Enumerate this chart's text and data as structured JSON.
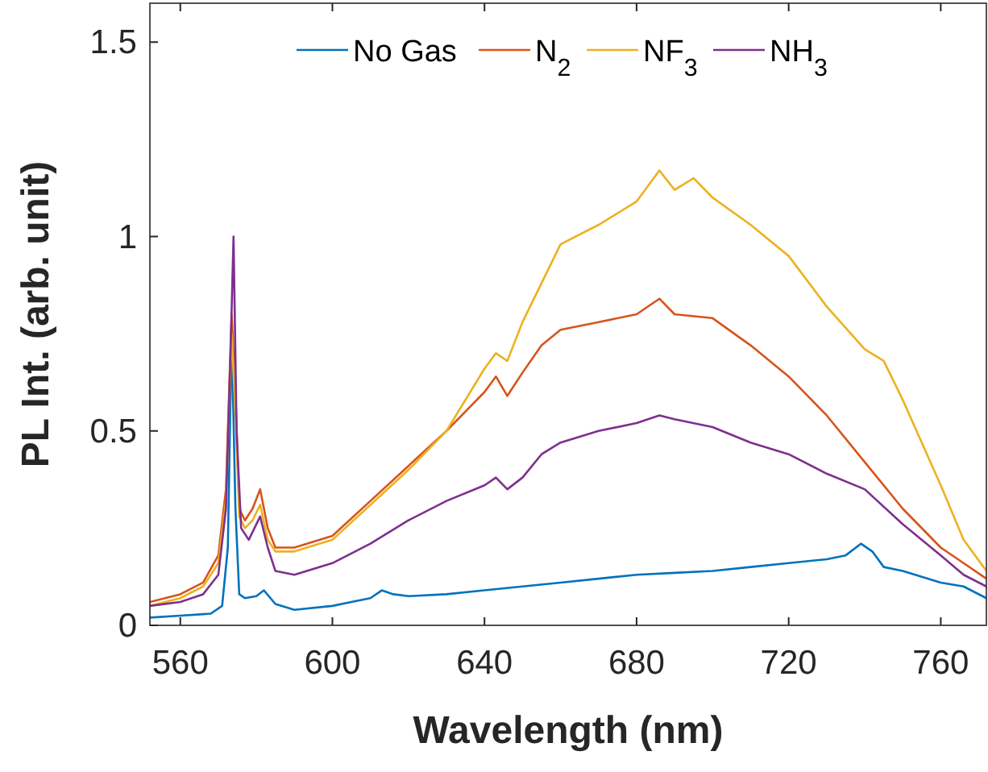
{
  "chart_data": {
    "type": "line",
    "xlabel": "Wavelength (nm)",
    "ylabel": "PL Int. (arb. unit)",
    "xlim": [
      552,
      772
    ],
    "ylim": [
      0,
      1.6
    ],
    "xticks": [
      560,
      600,
      640,
      680,
      720,
      760
    ],
    "yticks": [
      0,
      0.5,
      1,
      1.5
    ],
    "legend": "top",
    "grid": false,
    "line_style": "solid",
    "marker": "none",
    "series": [
      {
        "name": "No Gas",
        "color": "#0072bd",
        "x": [
          552,
          560,
          568,
          571,
          572.5,
          573.5,
          574.5,
          575.5,
          577,
          580,
          582,
          585,
          590,
          600,
          605,
          610,
          613,
          616,
          620,
          630,
          640,
          650,
          660,
          670,
          680,
          690,
          700,
          710,
          720,
          730,
          735,
          739,
          742,
          745,
          750,
          760,
          766,
          772
        ],
        "values": [
          0.02,
          0.025,
          0.03,
          0.05,
          0.2,
          0.75,
          0.3,
          0.08,
          0.07,
          0.075,
          0.09,
          0.055,
          0.04,
          0.05,
          0.06,
          0.07,
          0.09,
          0.08,
          0.075,
          0.08,
          0.09,
          0.1,
          0.11,
          0.12,
          0.13,
          0.135,
          0.14,
          0.15,
          0.16,
          0.17,
          0.18,
          0.21,
          0.19,
          0.15,
          0.14,
          0.11,
          0.1,
          0.07
        ]
      },
      {
        "name": "N$_{2}$",
        "color": "#d95319",
        "x": [
          552,
          560,
          566,
          570,
          572,
          573.5,
          574.5,
          575.5,
          577,
          579,
          581,
          583,
          585,
          590,
          600,
          610,
          620,
          630,
          640,
          643,
          646,
          650,
          655,
          660,
          670,
          680,
          686,
          690,
          700,
          710,
          720,
          730,
          740,
          750,
          760,
          766,
          772
        ],
        "values": [
          0.06,
          0.08,
          0.11,
          0.18,
          0.35,
          0.8,
          0.6,
          0.3,
          0.27,
          0.3,
          0.35,
          0.25,
          0.2,
          0.2,
          0.23,
          0.32,
          0.41,
          0.5,
          0.6,
          0.64,
          0.59,
          0.65,
          0.72,
          0.76,
          0.78,
          0.8,
          0.84,
          0.8,
          0.79,
          0.72,
          0.64,
          0.54,
          0.42,
          0.3,
          0.2,
          0.16,
          0.12
        ]
      },
      {
        "name": "NF$_{3}$",
        "color": "#edb120",
        "x": [
          552,
          560,
          566,
          570,
          572,
          573.5,
          574.5,
          575.5,
          577,
          579,
          581,
          583,
          585,
          590,
          600,
          610,
          620,
          630,
          640,
          643,
          646,
          650,
          655,
          660,
          670,
          680,
          686,
          690,
          695,
          700,
          710,
          720,
          730,
          740,
          745,
          750,
          760,
          766,
          772
        ],
        "values": [
          0.05,
          0.07,
          0.1,
          0.16,
          0.32,
          0.75,
          0.55,
          0.28,
          0.25,
          0.27,
          0.31,
          0.22,
          0.19,
          0.19,
          0.22,
          0.31,
          0.4,
          0.5,
          0.66,
          0.7,
          0.68,
          0.78,
          0.88,
          0.98,
          1.03,
          1.09,
          1.17,
          1.12,
          1.15,
          1.1,
          1.03,
          0.95,
          0.82,
          0.71,
          0.68,
          0.58,
          0.36,
          0.22,
          0.14
        ]
      },
      {
        "name": "NH$_{3}$",
        "color": "#7e2f8e",
        "x": [
          552,
          560,
          566,
          570,
          572,
          573.2,
          574,
          574.8,
          576,
          578,
          581,
          583,
          585,
          590,
          600,
          610,
          620,
          630,
          640,
          643,
          646,
          650,
          655,
          660,
          670,
          680,
          686,
          690,
          700,
          710,
          720,
          730,
          740,
          750,
          760,
          766,
          772
        ],
        "values": [
          0.05,
          0.06,
          0.08,
          0.13,
          0.3,
          0.7,
          1.0,
          0.5,
          0.25,
          0.22,
          0.28,
          0.2,
          0.14,
          0.13,
          0.16,
          0.21,
          0.27,
          0.32,
          0.36,
          0.38,
          0.35,
          0.38,
          0.44,
          0.47,
          0.5,
          0.52,
          0.54,
          0.53,
          0.51,
          0.47,
          0.44,
          0.39,
          0.35,
          0.26,
          0.18,
          0.13,
          0.1
        ]
      }
    ]
  }
}
